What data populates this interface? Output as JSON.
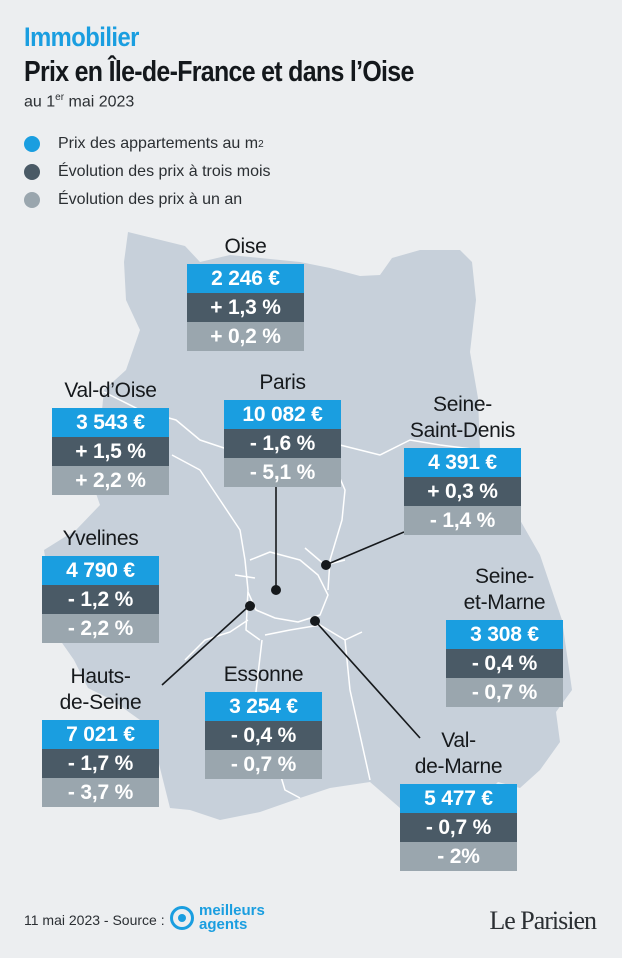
{
  "header": {
    "kicker": "Immobilier",
    "title": "Prix en Île-de-France et dans l’Oise",
    "date_prefix": "au 1",
    "date_sup": "er",
    "date_suffix": " mai 2023"
  },
  "legend": [
    {
      "label": "Prix des appartements au m",
      "sup": "2",
      "color": "#1a9ee0"
    },
    {
      "label": "Évolution des prix à trois mois",
      "sup": "",
      "color": "#4a5a66"
    },
    {
      "label": "Évolution des prix à un an",
      "sup": "",
      "color": "#9aa6ae"
    }
  ],
  "departments": [
    {
      "name": "Oise",
      "price": "2 246 €",
      "three_months": "+ 1,3 %",
      "one_year": "+ 0,2 %"
    },
    {
      "name": "Val-d’Oise",
      "price": "3 543 €",
      "three_months": "+ 1,5 %",
      "one_year": "+ 2,2 %"
    },
    {
      "name": "Paris",
      "price": "10 082 €",
      "three_months": "- 1,6 %",
      "one_year": "- 5,1 %"
    },
    {
      "name": "Seine-\nSaint-Denis",
      "price": "4 391 €",
      "three_months": "+ 0,3 %",
      "one_year": "- 1,4 %"
    },
    {
      "name": "Yvelines",
      "price": "4 790 €",
      "three_months": "- 1,2 %",
      "one_year": "- 2,2 %"
    },
    {
      "name": "Seine-\net-Marne",
      "price": "3 308 €",
      "three_months": "- 0,4 %",
      "one_year": "- 0,7 %"
    },
    {
      "name": "Hauts-\nde-Seine",
      "price": "7 021 €",
      "three_months": "- 1,7 %",
      "one_year": "- 3,7 %"
    },
    {
      "name": "Essonne",
      "price": "3 254 €",
      "three_months": "- 0,4 %",
      "one_year": "- 0,7 %"
    },
    {
      "name": "Val-\nde-Marne",
      "price": "5 477 €",
      "three_months": "- 0,7 %",
      "one_year": "- 2%"
    }
  ],
  "footer": {
    "source": "11 mai 2023 - Source :",
    "agent_line1": "meilleurs",
    "agent_line2": "agents",
    "publisher": "Le Parisien"
  },
  "colors": {
    "accent": "#1a9ee0",
    "dark": "#4a5a66",
    "light": "#9aa6ae",
    "map_fill": "#c7d0da",
    "background": "#eceef0"
  }
}
